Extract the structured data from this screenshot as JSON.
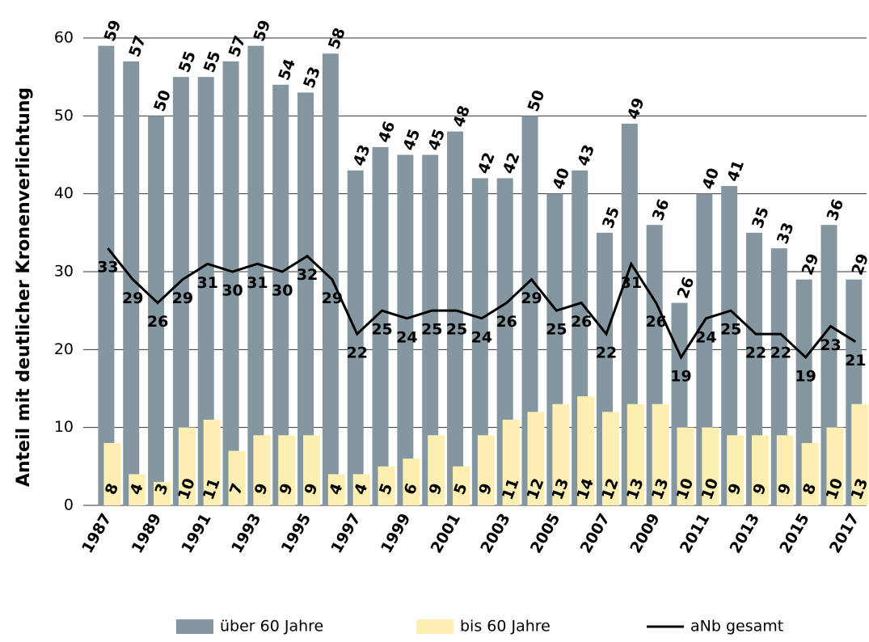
{
  "chart_data": {
    "type": "bar-line",
    "y_label": "Anteil mit deutlicher Kronenverlichtung",
    "categories": [
      "1987",
      null,
      "1989",
      null,
      "1991",
      null,
      "1993",
      null,
      "1995",
      null,
      "1997",
      null,
      "1999",
      null,
      "2001",
      null,
      "2003",
      null,
      "2005",
      null,
      "2007",
      null,
      "2009",
      null,
      "2011",
      null,
      "2013",
      null,
      "2015",
      null,
      "2017"
    ],
    "series": [
      {
        "name": "über 60 Jahre",
        "type": "bar",
        "color": "#8497a0",
        "values": [
          59,
          57,
          50,
          55,
          55,
          57,
          59,
          54,
          53,
          58,
          43,
          46,
          45,
          45,
          48,
          42,
          42,
          50,
          40,
          43,
          35,
          49,
          36,
          26,
          40,
          41,
          35,
          33,
          29,
          36,
          29
        ]
      },
      {
        "name": "bis 60 Jahre",
        "type": "bar",
        "color": "#fdefb2",
        "values": [
          8,
          4,
          3,
          10,
          11,
          7,
          9,
          9,
          9,
          4,
          4,
          5,
          6,
          9,
          5,
          9,
          11,
          12,
          13,
          14,
          12,
          13,
          13,
          10,
          10,
          9,
          9,
          9,
          8,
          10,
          13
        ]
      },
      {
        "name": "aNb gesamt",
        "type": "line",
        "color": "#000000",
        "values": [
          33,
          29,
          26,
          29,
          31,
          30,
          31,
          30,
          32,
          29,
          22,
          25,
          24,
          25,
          25,
          24,
          26,
          29,
          25,
          26,
          22,
          31,
          26,
          19,
          24,
          25,
          22,
          22,
          19,
          23,
          21
        ]
      }
    ],
    "ylim": [
      0,
      60
    ],
    "yticks": [
      0,
      10,
      20,
      30,
      40,
      50,
      60
    ],
    "grid": true,
    "legend": "bottom"
  }
}
